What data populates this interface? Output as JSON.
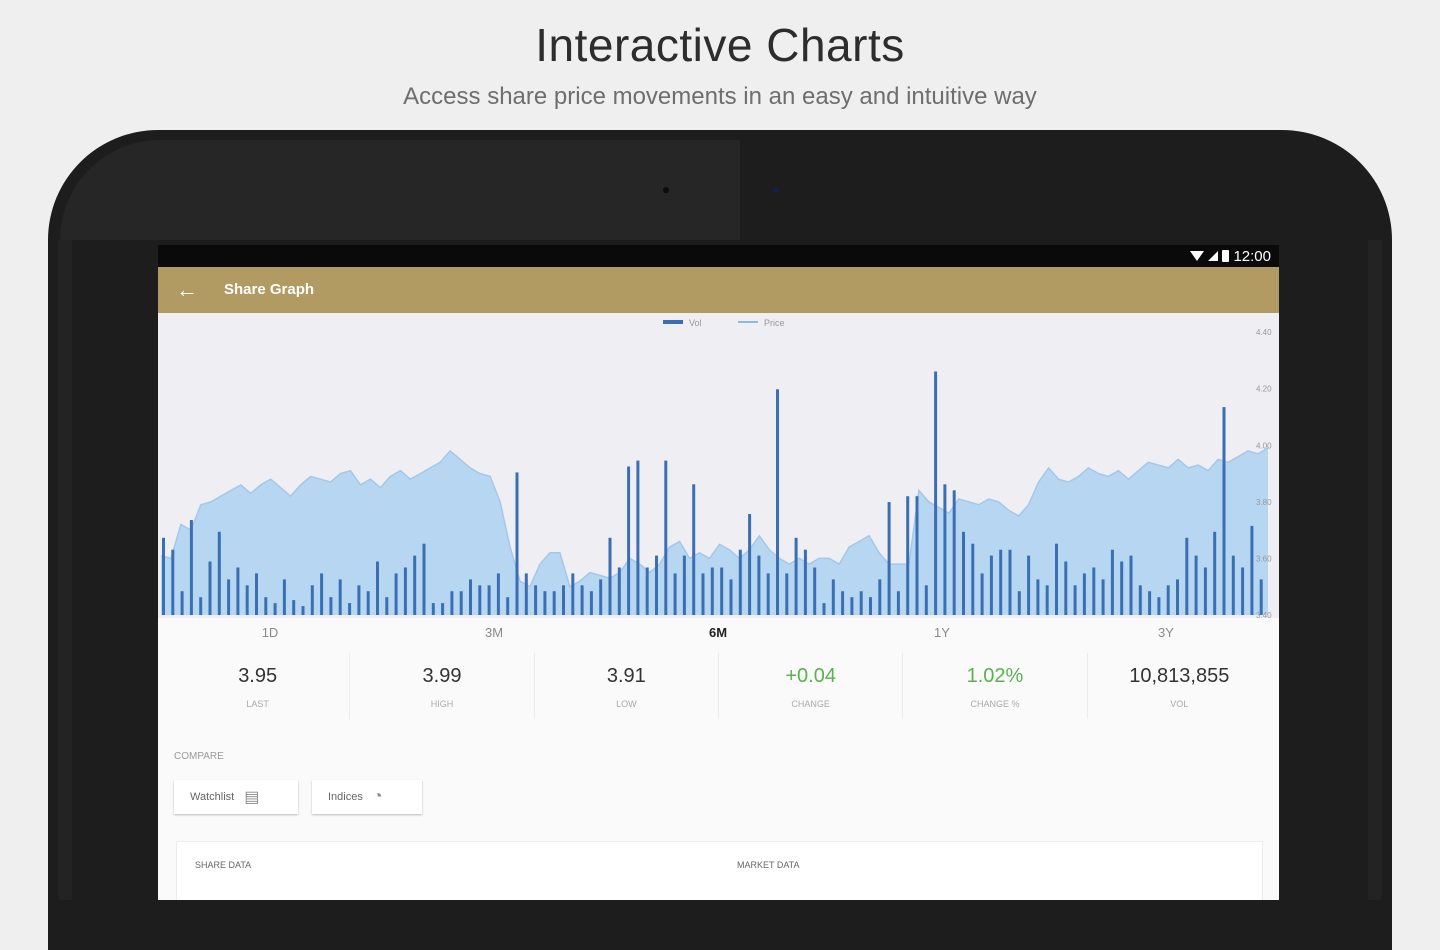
{
  "promo": {
    "title": "Interactive Charts",
    "subtitle": "Access share price movements in an easy and intuitive way"
  },
  "status_bar": {
    "time": "12:00"
  },
  "appbar": {
    "title": "Share Graph"
  },
  "colors": {
    "accent": "#b29b62",
    "volume": "#3a6fb4",
    "price_fill": "#b7d6f2",
    "positive": "#5ab24f"
  },
  "chart_data": {
    "type": "bar",
    "legend": [
      "Vol",
      "Price"
    ],
    "y_tick_labels": [
      "4.40",
      "4.20",
      "4.00",
      "3.80",
      "3.60",
      "3.40"
    ],
    "ylim": [
      3.4,
      4.45
    ],
    "price": [
      3.61,
      3.6,
      3.72,
      3.7,
      3.79,
      3.8,
      3.82,
      3.84,
      3.86,
      3.83,
      3.86,
      3.88,
      3.85,
      3.82,
      3.86,
      3.89,
      3.88,
      3.87,
      3.9,
      3.91,
      3.86,
      3.88,
      3.85,
      3.89,
      3.91,
      3.88,
      3.9,
      3.92,
      3.94,
      3.98,
      3.95,
      3.92,
      3.9,
      3.89,
      3.8,
      3.64,
      3.52,
      3.5,
      3.58,
      3.62,
      3.62,
      3.5,
      3.52,
      3.55,
      3.54,
      3.53,
      3.55,
      3.6,
      3.58,
      3.55,
      3.58,
      3.64,
      3.66,
      3.6,
      3.62,
      3.6,
      3.65,
      3.63,
      3.6,
      3.63,
      3.68,
      3.63,
      3.6,
      3.58,
      3.6,
      3.58,
      3.6,
      3.6,
      3.58,
      3.64,
      3.66,
      3.68,
      3.62,
      3.58,
      3.58,
      3.58,
      3.84,
      3.8,
      3.78,
      3.76,
      3.81,
      3.8,
      3.79,
      3.81,
      3.8,
      3.77,
      3.75,
      3.79,
      3.87,
      3.92,
      3.88,
      3.87,
      3.89,
      3.92,
      3.9,
      3.89,
      3.91,
      3.88,
      3.91,
      3.94,
      3.93,
      3.92,
      3.95,
      3.92,
      3.93,
      3.91,
      3.95,
      3.94,
      3.96,
      3.98,
      3.97,
      3.99
    ],
    "volume": [
      0.26,
      0.22,
      0.08,
      0.32,
      0.06,
      0.18,
      0.28,
      0.12,
      0.16,
      0.1,
      0.14,
      0.06,
      0.04,
      0.12,
      0.05,
      0.03,
      0.1,
      0.14,
      0.06,
      0.12,
      0.04,
      0.1,
      0.08,
      0.18,
      0.06,
      0.14,
      0.16,
      0.2,
      0.24,
      0.04,
      0.04,
      0.08,
      0.08,
      0.12,
      0.1,
      0.1,
      0.14,
      0.06,
      0.48,
      0.14,
      0.1,
      0.08,
      0.08,
      0.1,
      0.14,
      0.1,
      0.08,
      0.12,
      0.26,
      0.16,
      0.5,
      0.52,
      0.16,
      0.2,
      0.52,
      0.14,
      0.2,
      0.44,
      0.14,
      0.16,
      0.16,
      0.12,
      0.22,
      0.34,
      0.2,
      0.14,
      0.76,
      0.14,
      0.26,
      0.22,
      0.16,
      0.04,
      0.12,
      0.08,
      0.06,
      0.08,
      0.06,
      0.12,
      0.38,
      0.08,
      0.4,
      0.4,
      0.1,
      0.82,
      0.44,
      0.42,
      0.28,
      0.24,
      0.14,
      0.2,
      0.22,
      0.22,
      0.08,
      0.2,
      0.12,
      0.1,
      0.24,
      0.18,
      0.1,
      0.14,
      0.16,
      0.12,
      0.22,
      0.18,
      0.2,
      0.1,
      0.08,
      0.06,
      0.1,
      0.12,
      0.26,
      0.2,
      0.16,
      0.28,
      0.7,
      0.2,
      0.16,
      0.3,
      0.12
    ]
  },
  "timeframes": [
    {
      "label": "1D",
      "active": false
    },
    {
      "label": "3M",
      "active": false
    },
    {
      "label": "6M",
      "active": true
    },
    {
      "label": "1Y",
      "active": false
    },
    {
      "label": "3Y",
      "active": false
    }
  ],
  "stats": [
    {
      "value": "3.95",
      "label": "LAST"
    },
    {
      "value": "3.99",
      "label": "HIGH"
    },
    {
      "value": "3.91",
      "label": "LOW"
    },
    {
      "value": "+0.04",
      "label": "CHANGE"
    },
    {
      "value": "1.02%",
      "label": "CHANGE %"
    },
    {
      "value": "10,813,855",
      "label": "VOL"
    }
  ],
  "compare": {
    "label": "COMPARE",
    "watchlist": "Watchlist",
    "indices": "Indices",
    "watchlist_icon": "list-icon",
    "indices_icon": "pie-chart-icon"
  },
  "cards": {
    "share_data": "SHARE DATA",
    "market_data": "MARKET DATA"
  }
}
